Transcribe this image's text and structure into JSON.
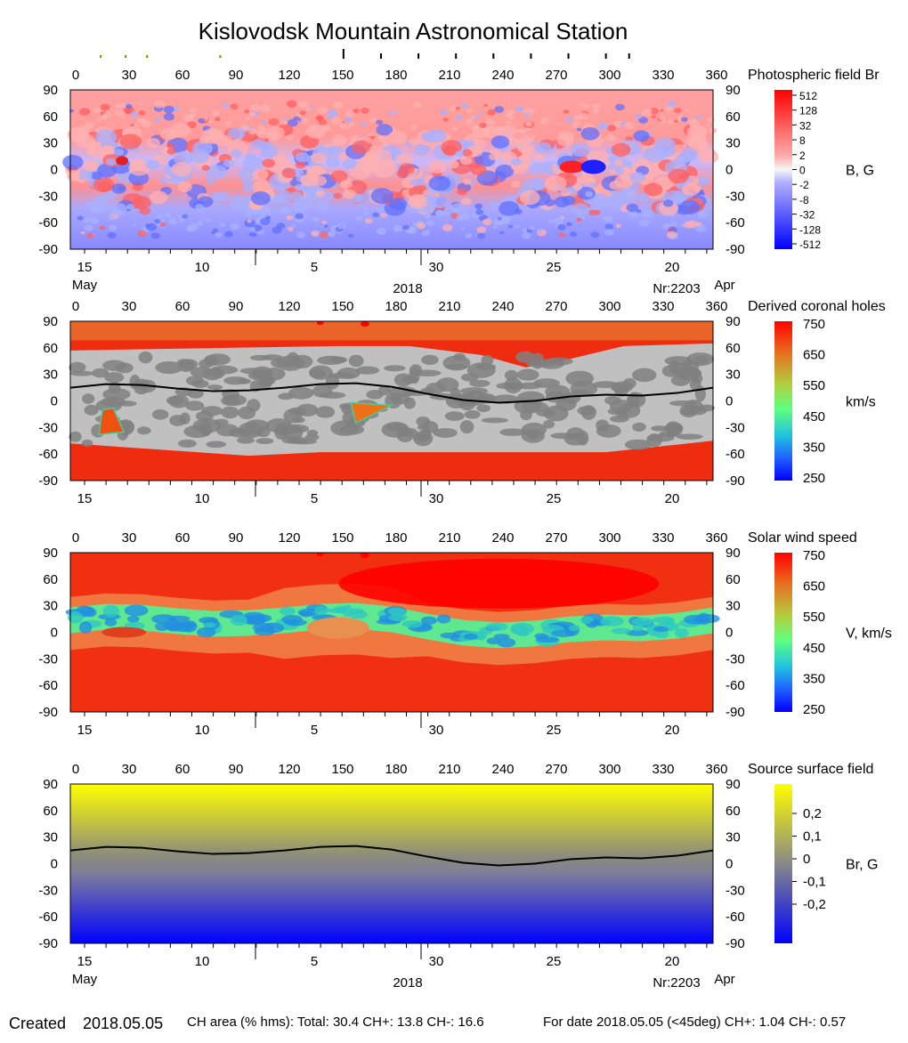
{
  "title": "Kislovodsk Mountain Astronomical Station",
  "footer": {
    "created_label": "Created",
    "created_date": "2018.05.05",
    "ch_area": "CH area (% hms): Total: 30.4 CH+: 13.8   CH-: 16.6",
    "for_date": "For date 2018.05.05 (<45deg) CH+: 1.04    CH-: 0.57"
  },
  "colors": {
    "field_pos": "#ff0000",
    "field_neg": "#0000ff",
    "ch_light_gray": "#c0c0c0",
    "ch_dark_gray": "#808080",
    "speed_fast": "#ff0000",
    "speed_slow": "#0000ff",
    "source_pos": "#ffff00",
    "source_neg": "#0000ff",
    "neutral_line": "#000000"
  },
  "chart_data": [
    {
      "type": "heatmap",
      "name": "Photospheric field Br",
      "colorbar_label": "B, G",
      "colorbar_ticks": [
        "512",
        "128",
        "32",
        "8",
        "2",
        "0",
        "-2",
        "-8",
        "-32",
        "-128",
        "-512"
      ],
      "x_ticks_top": [
        "0",
        "30",
        "60",
        "90",
        "120",
        "150",
        "180",
        "210",
        "240",
        "270",
        "300",
        "330",
        "360"
      ],
      "y_ticks": [
        "90",
        "60",
        "30",
        "0",
        "-30",
        "-60",
        "-90"
      ],
      "date_ticks": [
        "15",
        "10",
        "5",
        "30",
        "25",
        "20"
      ],
      "date_labels": {
        "left": "May",
        "center": "2018",
        "nr": "Nr:2203",
        "right": "Apr"
      }
    },
    {
      "type": "heatmap",
      "name": "Derived coronal holes",
      "colorbar_label": "km/s",
      "colorbar_ticks": [
        "750",
        "650",
        "550",
        "450",
        "350",
        "250"
      ],
      "x_ticks_top": [
        "0",
        "30",
        "60",
        "90",
        "120",
        "150",
        "180",
        "210",
        "240",
        "270",
        "300",
        "330",
        "360"
      ],
      "y_ticks": [
        "90",
        "60",
        "30",
        "0",
        "-30",
        "-60",
        "-90"
      ],
      "date_ticks": [
        "15",
        "10",
        "5",
        "30",
        "25",
        "20"
      ]
    },
    {
      "type": "heatmap",
      "name": "Solar wind speed",
      "colorbar_label": "V, km/s",
      "colorbar_ticks": [
        "750",
        "650",
        "550",
        "450",
        "350",
        "250"
      ],
      "x_ticks_top": [
        "0",
        "30",
        "60",
        "90",
        "120",
        "150",
        "180",
        "210",
        "240",
        "270",
        "300",
        "330",
        "360"
      ],
      "y_ticks": [
        "90",
        "60",
        "30",
        "0",
        "-30",
        "-60",
        "-90"
      ],
      "date_ticks": [
        "15",
        "10",
        "5",
        "30",
        "25",
        "20"
      ]
    },
    {
      "type": "heatmap",
      "name": "Source surface field",
      "colorbar_label": "Br, G",
      "colorbar_ticks": [
        "0,2",
        "0,1",
        "0",
        "-0,1",
        "-0,2"
      ],
      "x_ticks_top": [
        "0",
        "30",
        "60",
        "90",
        "120",
        "150",
        "180",
        "210",
        "240",
        "270",
        "300",
        "330",
        "360"
      ],
      "y_ticks": [
        "90",
        "60",
        "30",
        "0",
        "-30",
        "-60",
        "-90"
      ],
      "date_ticks": [
        "15",
        "10",
        "5",
        "30",
        "25",
        "20"
      ],
      "date_labels": {
        "left": "May",
        "center": "2018",
        "nr": "Nr:2203",
        "right": "Apr"
      },
      "neutral_line": {
        "x": [
          0,
          20,
          40,
          60,
          80,
          100,
          120,
          140,
          160,
          180,
          200,
          220,
          240,
          260,
          280,
          300,
          320,
          340,
          360
        ],
        "y": [
          15,
          19,
          18,
          14,
          11,
          12,
          15,
          19,
          20,
          16,
          8,
          1,
          -2,
          0,
          5,
          7,
          6,
          9,
          15
        ]
      }
    }
  ],
  "top_markers": {
    "olive": [
      17,
      31,
      43,
      84
    ],
    "black": [
      153,
      174,
      195,
      216,
      237,
      258,
      279,
      300,
      313
    ]
  }
}
